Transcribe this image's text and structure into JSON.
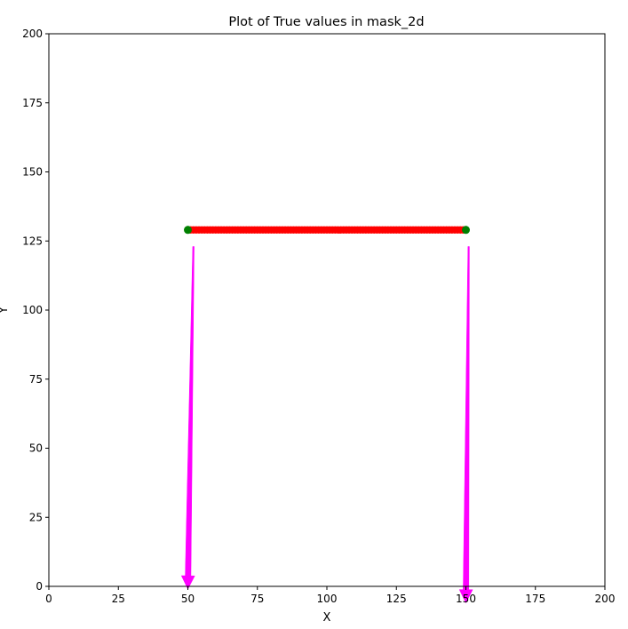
{
  "chart_data": {
    "type": "scatter",
    "title": "Plot of True values in mask_2d",
    "xlabel": "X",
    "ylabel": "Y",
    "xlim": [
      0,
      200
    ],
    "ylim": [
      0,
      200
    ],
    "xticks": [
      0,
      25,
      50,
      75,
      100,
      125,
      150,
      175,
      200
    ],
    "yticks": [
      0,
      25,
      50,
      75,
      100,
      125,
      150,
      175,
      200
    ],
    "grid": false,
    "legend": "none",
    "red_points": {
      "color": "#ff0000",
      "y": 129,
      "x_start": 51,
      "x_end": 149
    },
    "endpoints": {
      "color": "#008000",
      "points": [
        {
          "x": 50,
          "y": 129
        },
        {
          "x": 150,
          "y": 129
        }
      ]
    },
    "arrows": {
      "color": "#ff00ff",
      "items": [
        {
          "x_tail": 52,
          "y_tail": 123,
          "x_tip": 50,
          "y_tip": -1
        },
        {
          "x_tail": 151,
          "y_tail": 123,
          "x_tip": 150,
          "y_tip": -6
        }
      ]
    }
  }
}
